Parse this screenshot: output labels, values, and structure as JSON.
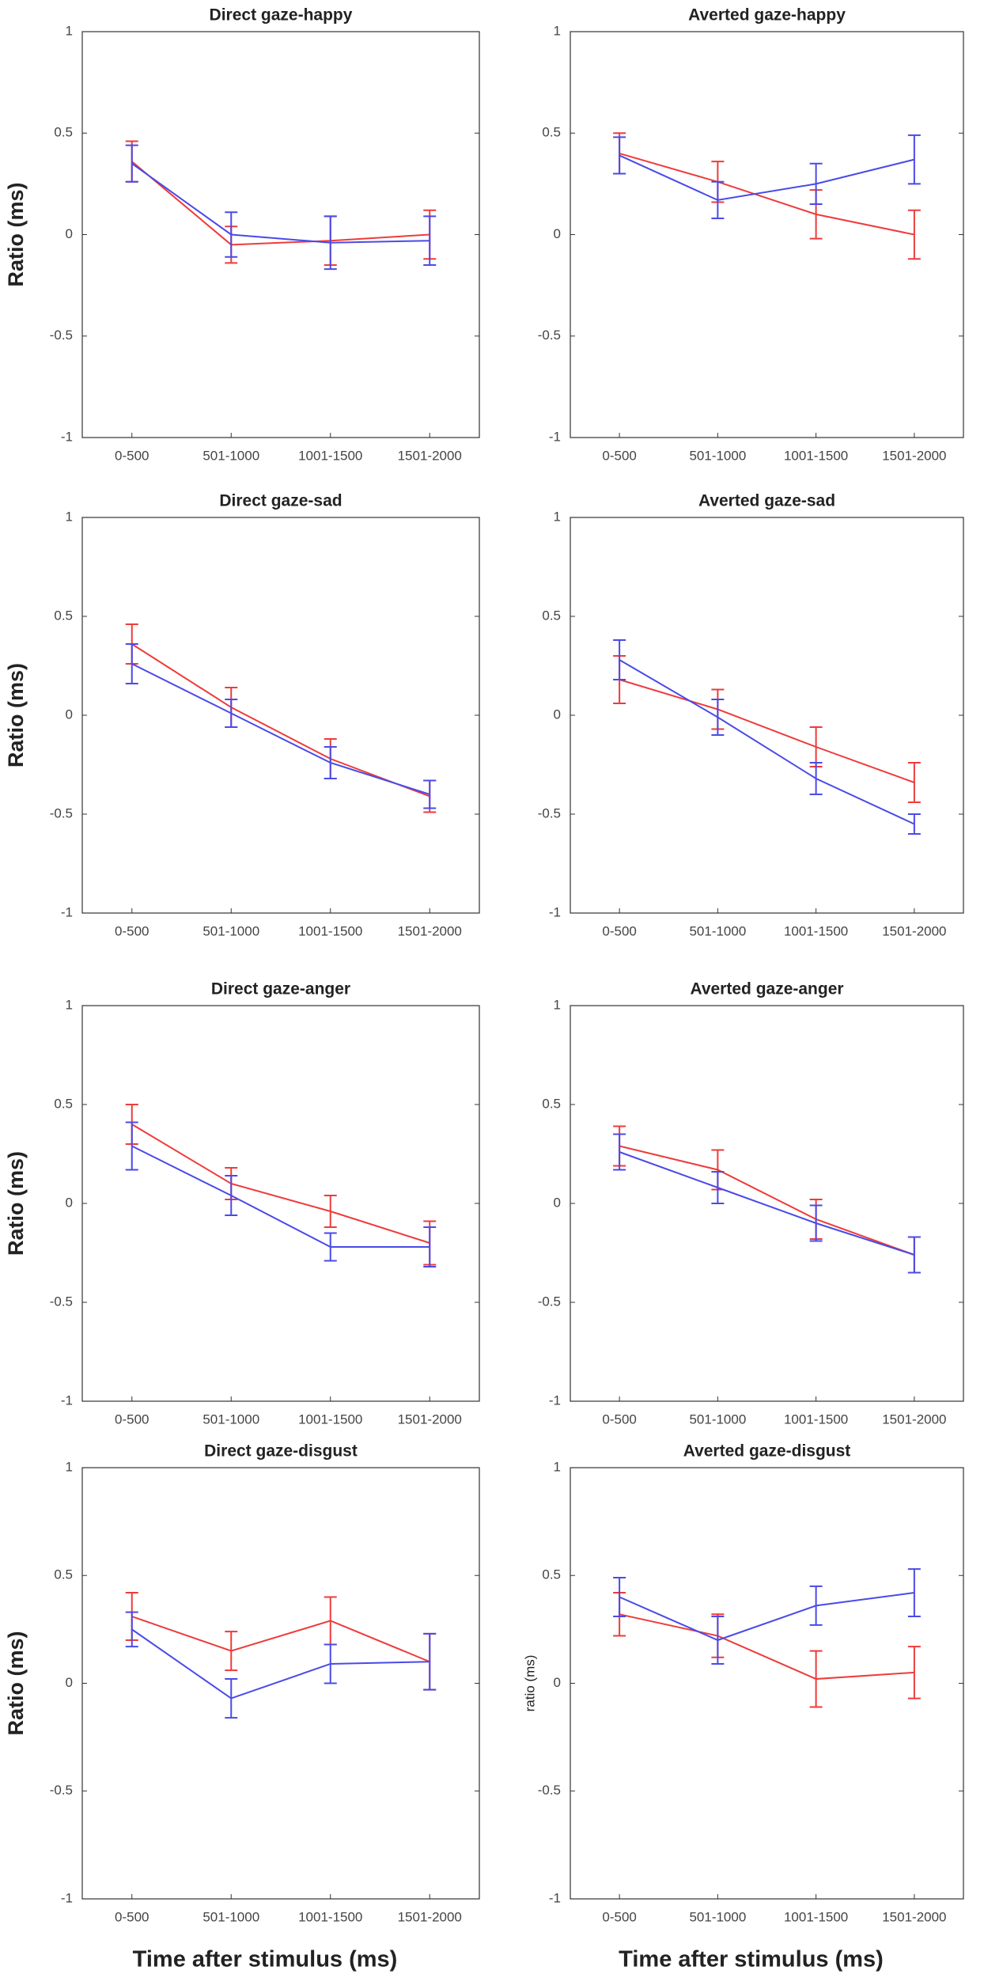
{
  "chart_data": [
    {
      "type": "line",
      "title": "Direct gaze-happy",
      "ylabel": "Ratio (ms)",
      "categories": [
        "0-500",
        "501-1000",
        "1001-1500",
        "1501-2000"
      ],
      "ylim": [
        -1,
        1
      ],
      "yticks": [
        -1,
        -0.5,
        0,
        0.5,
        1
      ],
      "series": [
        {
          "color": "#ee3b3b",
          "values": [
            0.36,
            -0.05,
            -0.03,
            0
          ],
          "errors": [
            0.1,
            0.09,
            0.12,
            0.12
          ]
        },
        {
          "color": "#4a4ae8",
          "values": [
            0.35,
            0,
            -0.04,
            -0.03
          ],
          "errors": [
            0.09,
            0.11,
            0.13,
            0.12
          ]
        }
      ]
    },
    {
      "type": "line",
      "title": "Averted gaze-happy",
      "categories": [
        "0-500",
        "501-1000",
        "1001-1500",
        "1501-2000"
      ],
      "ylim": [
        -1,
        1
      ],
      "yticks": [
        -1,
        -0.5,
        0,
        0.5,
        1
      ],
      "series": [
        {
          "color": "#ee3b3b",
          "values": [
            0.4,
            0.26,
            0.1,
            0
          ],
          "errors": [
            0.1,
            0.1,
            0.12,
            0.12
          ]
        },
        {
          "color": "#4a4ae8",
          "values": [
            0.39,
            0.17,
            0.25,
            0.37
          ],
          "errors": [
            0.09,
            0.09,
            0.1,
            0.12
          ]
        }
      ]
    },
    {
      "type": "line",
      "title": "Direct gaze-sad",
      "ylabel": "Ratio (ms)",
      "categories": [
        "0-500",
        "501-1000",
        "1001-1500",
        "1501-2000"
      ],
      "ylim": [
        -1,
        1
      ],
      "yticks": [
        -1,
        -0.5,
        0,
        0.5,
        1
      ],
      "series": [
        {
          "color": "#ee3b3b",
          "values": [
            0.36,
            0.04,
            -0.22,
            -0.41
          ],
          "errors": [
            0.1,
            0.1,
            0.1,
            0.08
          ]
        },
        {
          "color": "#4a4ae8",
          "values": [
            0.26,
            0.01,
            -0.24,
            -0.4
          ],
          "errors": [
            0.1,
            0.07,
            0.08,
            0.07
          ]
        }
      ]
    },
    {
      "type": "line",
      "title": "Averted gaze-sad",
      "categories": [
        "0-500",
        "501-1000",
        "1001-1500",
        "1501-2000"
      ],
      "ylim": [
        -1,
        1
      ],
      "yticks": [
        -1,
        -0.5,
        0,
        0.5,
        1
      ],
      "series": [
        {
          "color": "#ee3b3b",
          "values": [
            0.18,
            0.03,
            -0.16,
            -0.34
          ],
          "errors": [
            0.12,
            0.1,
            0.1,
            0.1
          ]
        },
        {
          "color": "#4a4ae8",
          "values": [
            0.28,
            -0.01,
            -0.32,
            -0.55
          ],
          "errors": [
            0.1,
            0.09,
            0.08,
            0.05
          ]
        }
      ]
    },
    {
      "type": "line",
      "title": "Direct gaze-anger",
      "ylabel": "Ratio (ms)",
      "categories": [
        "0-500",
        "501-1000",
        "1001-1500",
        "1501-2000"
      ],
      "ylim": [
        -1,
        1
      ],
      "yticks": [
        -1,
        -0.5,
        0,
        0.5,
        1
      ],
      "series": [
        {
          "color": "#ee3b3b",
          "values": [
            0.4,
            0.1,
            -0.04,
            -0.2
          ],
          "errors": [
            0.1,
            0.08,
            0.08,
            0.11
          ]
        },
        {
          "color": "#4a4ae8",
          "values": [
            0.29,
            0.04,
            -0.22,
            -0.22
          ],
          "errors": [
            0.12,
            0.1,
            0.07,
            0.1
          ]
        }
      ]
    },
    {
      "type": "line",
      "title": "Averted gaze-anger",
      "categories": [
        "0-500",
        "501-1000",
        "1001-1500",
        "1501-2000"
      ],
      "ylim": [
        -1,
        1
      ],
      "yticks": [
        -1,
        -0.5,
        0,
        0.5,
        1
      ],
      "series": [
        {
          "color": "#ee3b3b",
          "values": [
            0.29,
            0.17,
            -0.08,
            -0.26
          ],
          "errors": [
            0.1,
            0.1,
            0.1,
            0.09
          ]
        },
        {
          "color": "#4a4ae8",
          "values": [
            0.26,
            0.08,
            -0.1,
            -0.26
          ],
          "errors": [
            0.09,
            0.08,
            0.09,
            0.09
          ]
        }
      ]
    },
    {
      "type": "line",
      "title": "Direct gaze-disgust",
      "ylabel": "Ratio (ms)",
      "xlabel": "Time after stimulus (ms)",
      "categories": [
        "0-500",
        "501-1000",
        "1001-1500",
        "1501-2000"
      ],
      "ylim": [
        -1,
        1
      ],
      "yticks": [
        -1,
        -0.5,
        0,
        0.5,
        1
      ],
      "series": [
        {
          "color": "#ee3b3b",
          "values": [
            0.31,
            0.15,
            0.29,
            0.1
          ],
          "errors": [
            0.11,
            0.09,
            0.11,
            0.13
          ]
        },
        {
          "color": "#4a4ae8",
          "values": [
            0.25,
            -0.07,
            0.09,
            0.1
          ],
          "errors": [
            0.08,
            0.09,
            0.09,
            0.13
          ]
        }
      ]
    },
    {
      "type": "line",
      "title": "Averted gaze-disgust",
      "ylabel": "ratio (ms)",
      "xlabel": "Time after stimulus (ms)",
      "categories": [
        "0-500",
        "501-1000",
        "1001-1500",
        "1501-2000"
      ],
      "ylim": [
        -1,
        1
      ],
      "yticks": [
        -1,
        -0.5,
        0,
        0.5,
        1
      ],
      "series": [
        {
          "color": "#ee3b3b",
          "values": [
            0.32,
            0.22,
            0.02,
            0.05
          ],
          "errors": [
            0.1,
            0.1,
            0.13,
            0.12
          ]
        },
        {
          "color": "#4a4ae8",
          "values": [
            0.4,
            0.2,
            0.36,
            0.42
          ],
          "errors": [
            0.09,
            0.11,
            0.09,
            0.11
          ]
        }
      ]
    }
  ]
}
